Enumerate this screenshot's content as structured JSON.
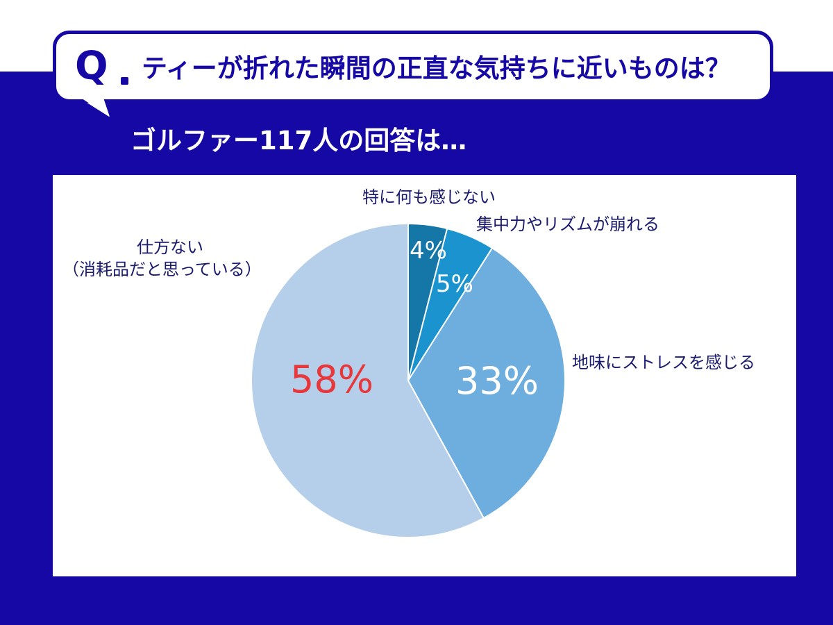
{
  "header": {
    "q_label": "Q",
    "question": "ティーが折れた瞬間の正直な気持ちに近いものは？",
    "subtitle": "ゴルファー117人の回答は…"
  },
  "colors": {
    "navy": "#1508a5",
    "highlight": "#e8373a"
  },
  "chart_data": {
    "type": "pie",
    "start": "12 o'clock, clockwise",
    "slices": [
      {
        "label": "特に何も感じない",
        "value": 4,
        "value_label": "4%",
        "color": "#1576a8",
        "text_color": "#ffffff"
      },
      {
        "label": "集中力やリズムが崩れる",
        "value": 5,
        "value_label": "5%",
        "color": "#1a93cf",
        "text_color": "#ffffff"
      },
      {
        "label": "地味にストレスを感じる",
        "value": 33,
        "value_label": "33%",
        "color": "#6daedf",
        "text_color": "#ffffff"
      },
      {
        "label_lines": [
          "仕方ない",
          "（消耗品だと思っている）"
        ],
        "value": 58,
        "value_label": "58%",
        "color": "#b5cfea",
        "text_color": "#e8373a"
      }
    ]
  }
}
